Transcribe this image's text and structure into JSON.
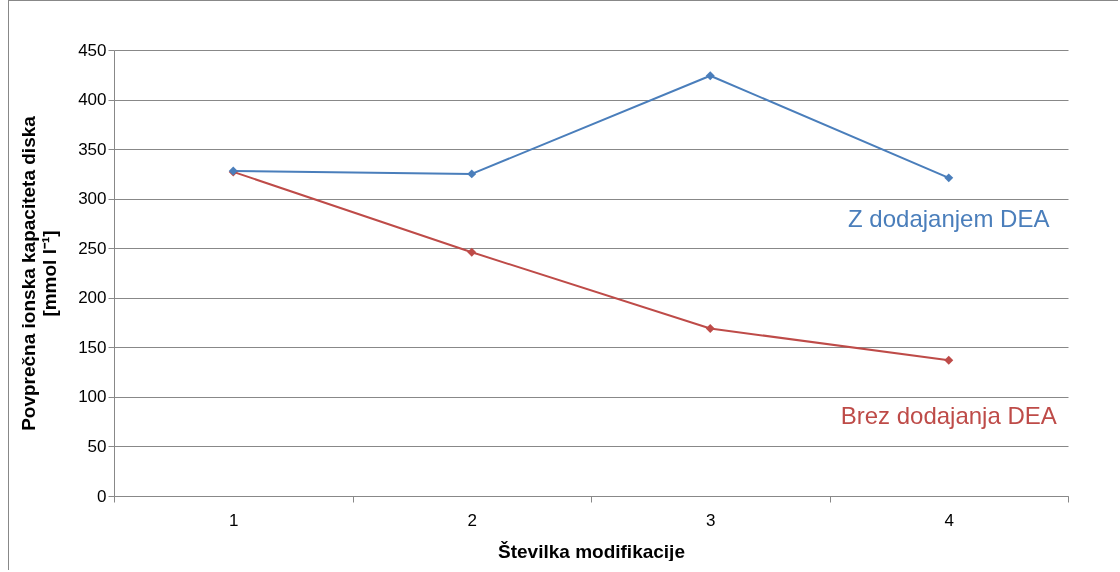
{
  "chart_data": {
    "type": "line",
    "xlabel": "Številka modifikacije",
    "ylabel": "Povprečna ionska kapaciteta diska\n[mmol l⁻¹]",
    "categories": [
      "1",
      "2",
      "3",
      "4"
    ],
    "series": [
      {
        "name": "Z dodajanjem DEA",
        "color": "#4a7ebb",
        "values": [
          328,
          325,
          424,
          321
        ]
      },
      {
        "name": "Brez dodajanja DEA",
        "color": "#be4b48",
        "values": [
          327,
          246,
          169,
          137
        ]
      }
    ],
    "ylim": [
      0,
      450
    ],
    "yticks": [
      0,
      50,
      100,
      150,
      200,
      250,
      300,
      350,
      400,
      450
    ],
    "grid": "y",
    "marker": "diamond",
    "legend": false
  }
}
